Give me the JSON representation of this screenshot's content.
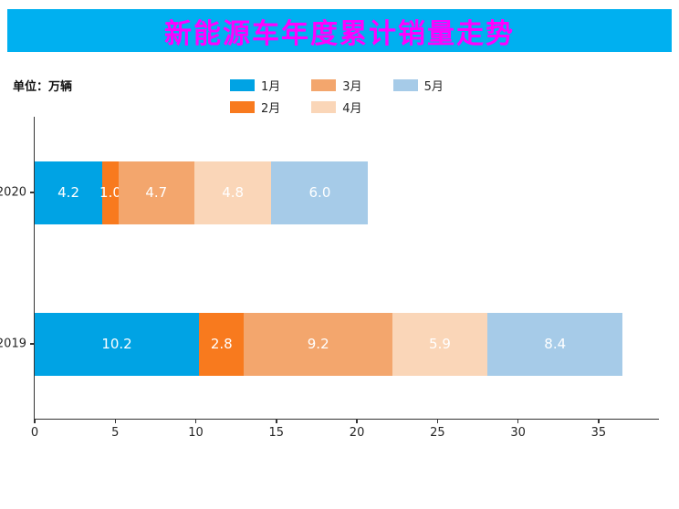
{
  "title": "新能源车年度累计销量走势",
  "unit_label": "单位：万辆",
  "colors": {
    "title_bar_bg": "#00B0F0",
    "title_text": "#FF00FF",
    "axis": "#333333",
    "bar_label_text": "#FFFFFF"
  },
  "chart_data": {
    "type": "bar",
    "stacked": true,
    "orientation": "horizontal",
    "title": "新能源车年度累计销量走势",
    "unit": "万辆",
    "categories": [
      "2020",
      "2019"
    ],
    "series": [
      {
        "name": "1月",
        "color": "#00A3E4",
        "values": [
          4.2,
          10.2
        ]
      },
      {
        "name": "2月",
        "color": "#F87A1E",
        "values": [
          1.0,
          2.8
        ]
      },
      {
        "name": "3月",
        "color": "#F3A66D",
        "values": [
          4.7,
          9.2
        ]
      },
      {
        "name": "4月",
        "color": "#FAD6B8",
        "values": [
          4.8,
          5.9
        ]
      },
      {
        "name": "5月",
        "color": "#A6CBE8",
        "values": [
          6.0,
          8.4
        ]
      }
    ],
    "totals": [
      20.7,
      36.5
    ],
    "xlim": [
      0,
      38.8
    ],
    "xticks": [
      0,
      5,
      10,
      15,
      20,
      25,
      30,
      35
    ],
    "legend_position": "top-center",
    "legend_columns": 3,
    "grid": false
  }
}
